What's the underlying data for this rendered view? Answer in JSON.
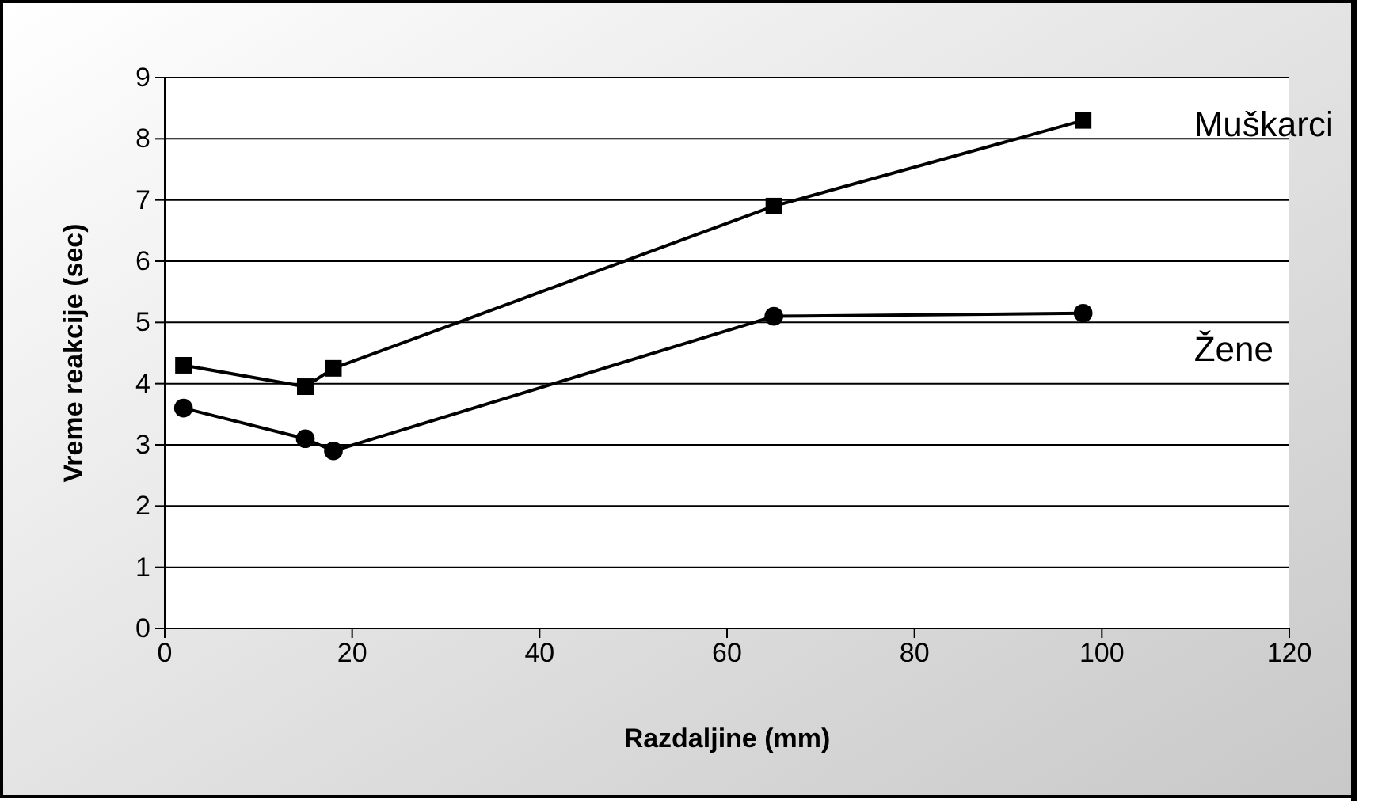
{
  "chart_data": {
    "type": "line",
    "xlabel": "Razdaljine (mm)",
    "ylabel": "Vreme reakcije (sec)",
    "xlim": [
      0,
      120
    ],
    "xticks": [
      0,
      20,
      40,
      60,
      80,
      100,
      120
    ],
    "ylim": [
      0,
      9
    ],
    "yticks": [
      0,
      1,
      2,
      3,
      4,
      5,
      6,
      7,
      8,
      9
    ],
    "grid": "y",
    "series": [
      {
        "name": "Muškarci",
        "color": "#000000",
        "marker": "square",
        "x": [
          2,
          15,
          18,
          65,
          98
        ],
        "values": [
          4.3,
          3.95,
          4.25,
          6.9,
          8.3
        ]
      },
      {
        "name": "Žene",
        "color": "#000000",
        "marker": "circle",
        "x": [
          2,
          15,
          18,
          65,
          98
        ],
        "values": [
          3.6,
          3.1,
          2.9,
          5.1,
          5.15
        ]
      }
    ]
  }
}
